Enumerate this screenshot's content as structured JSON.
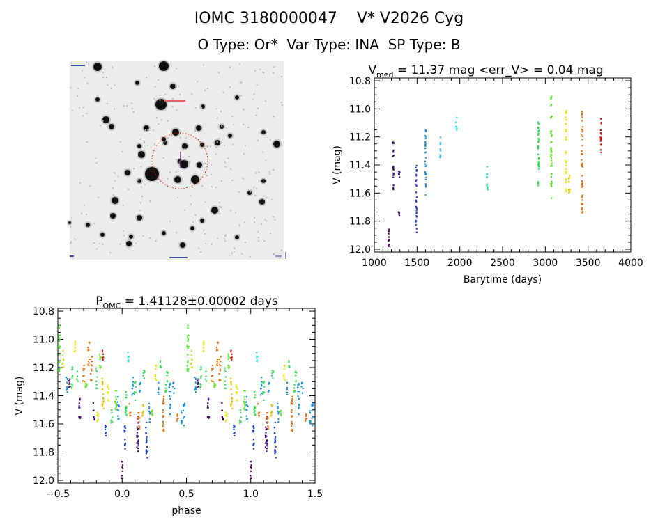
{
  "header": {
    "title": "IOMC 3180000047    V* V2026 Cyg",
    "subtitle": "O Type: Or*  Var Type: INA  SP Type: B"
  },
  "image": {
    "type": "finder-chart",
    "description_labels_illegible": true,
    "aperture_color": "#d01010"
  },
  "chart_data": [
    {
      "type": "scatter",
      "title_main": "V",
      "title_sub": "med",
      "title_rest": " = 11.37 mag <err_V> = 0.04 mag",
      "xlabel": "Barytime (days)",
      "ylabel": "V (mag)",
      "xlim": [
        1000,
        4000
      ],
      "ylim": [
        12.02,
        10.78
      ],
      "y_inverted": true,
      "xticks": [
        1000,
        1500,
        2000,
        2500,
        3000,
        3500,
        4000
      ],
      "yticks": [
        "10.8",
        "11.0",
        "11.2",
        "11.4",
        "11.6",
        "11.8",
        "12.0"
      ],
      "grid": false,
      "series": [
        {
          "x": 1170,
          "vmin": 11.84,
          "vmax": 12.0,
          "color": "#4b0050"
        },
        {
          "x": 1220,
          "vmin": 11.23,
          "vmax": 11.58,
          "color": "#3c0a78"
        },
        {
          "x": 1290,
          "vmin": 11.43,
          "vmax": 11.49,
          "color": "#3c0a78"
        },
        {
          "x": 1290,
          "vmin": 11.72,
          "vmax": 11.77,
          "color": "#3c0a78"
        },
        {
          "x": 1490,
          "vmin": 11.4,
          "vmax": 11.88,
          "color": "#1a3cc8"
        },
        {
          "x": 1600,
          "vmin": 11.15,
          "vmax": 11.62,
          "color": "#1e90d8"
        },
        {
          "x": 1770,
          "vmin": 11.17,
          "vmax": 11.35,
          "color": "#28c8e0"
        },
        {
          "x": 1960,
          "vmin": 11.06,
          "vmax": 11.18,
          "color": "#30e0d0"
        },
        {
          "x": 2320,
          "vmin": 11.41,
          "vmax": 11.59,
          "color": "#20e0a0"
        },
        {
          "x": 2920,
          "vmin": 11.08,
          "vmax": 11.56,
          "color": "#20e040"
        },
        {
          "x": 3070,
          "vmin": 10.9,
          "vmax": 11.66,
          "color": "#60e020"
        },
        {
          "x": 3240,
          "vmin": 11.0,
          "vmax": 11.61,
          "color": "#e8e800"
        },
        {
          "x": 3280,
          "vmin": 11.46,
          "vmax": 11.62,
          "color": "#e8c000"
        },
        {
          "x": 3430,
          "vmin": 11.01,
          "vmax": 11.75,
          "color": "#e07010"
        },
        {
          "x": 3650,
          "vmin": 11.06,
          "vmax": 11.35,
          "color": "#d01010"
        }
      ]
    },
    {
      "type": "scatter",
      "title_main": "P",
      "title_sub": "OMC",
      "title_rest": " = 1.41128±0.00002 days",
      "xlabel": "phase",
      "ylabel": "V (mag)",
      "xlim": [
        -0.5,
        1.5
      ],
      "ylim": [
        12.02,
        10.78
      ],
      "y_inverted": true,
      "xticks": [
        "-0.5",
        "0.0",
        "0.5",
        "1.0",
        "1.5"
      ],
      "yticks": [
        "10.8",
        "11.0",
        "11.2",
        "11.4",
        "11.6",
        "11.8",
        "12.0"
      ],
      "grid": false,
      "phase_repeated_plus_one": true,
      "series": [
        {
          "x": -0.49,
          "vmin": 10.9,
          "vmax": 11.25,
          "color": "#50e030"
        },
        {
          "x": -0.46,
          "vmin": 11.05,
          "vmax": 11.2,
          "color": "#c0e020"
        },
        {
          "x": -0.43,
          "vmin": 11.25,
          "vmax": 11.4,
          "color": "#2090d0"
        },
        {
          "x": -0.41,
          "vmin": 11.28,
          "vmax": 11.38,
          "color": "#3c0a78"
        },
        {
          "x": -0.39,
          "vmin": 11.18,
          "vmax": 11.35,
          "color": "#40d860"
        },
        {
          "x": -0.37,
          "vmin": 11.0,
          "vmax": 11.1,
          "color": "#e8e800"
        },
        {
          "x": -0.35,
          "vmin": 11.2,
          "vmax": 11.3,
          "color": "#40d860"
        },
        {
          "x": -0.33,
          "vmin": 11.42,
          "vmax": 11.57,
          "color": "#3c0a78"
        },
        {
          "x": -0.3,
          "vmin": 11.15,
          "vmax": 11.3,
          "color": "#e07010"
        },
        {
          "x": -0.28,
          "vmin": 11.3,
          "vmax": 11.35,
          "color": "#60e020"
        },
        {
          "x": -0.26,
          "vmin": 11.02,
          "vmax": 11.2,
          "color": "#e07010"
        },
        {
          "x": -0.24,
          "vmin": 11.1,
          "vmax": 11.3,
          "color": "#e07010"
        },
        {
          "x": -0.22,
          "vmin": 11.45,
          "vmax": 11.58,
          "color": "#4b0050"
        },
        {
          "x": -0.2,
          "vmin": 11.2,
          "vmax": 11.35,
          "color": "#40d860"
        },
        {
          "x": -0.19,
          "vmin": 11.5,
          "vmax": 11.6,
          "color": "#e8e800"
        },
        {
          "x": -0.17,
          "vmin": 11.1,
          "vmax": 11.25,
          "color": "#60e020"
        },
        {
          "x": -0.15,
          "vmin": 11.07,
          "vmax": 11.15,
          "color": "#d01010"
        },
        {
          "x": -0.15,
          "vmin": 11.25,
          "vmax": 11.5,
          "color": "#e8c000"
        },
        {
          "x": -0.13,
          "vmin": 11.6,
          "vmax": 11.73,
          "color": "#1a3cc8"
        },
        {
          "x": -0.11,
          "vmin": 11.3,
          "vmax": 11.45,
          "color": "#e8e800"
        },
        {
          "x": -0.08,
          "vmin": 11.5,
          "vmax": 11.62,
          "color": "#40d860"
        },
        {
          "x": -0.05,
          "vmin": 11.3,
          "vmax": 11.5,
          "color": "#60e020"
        },
        {
          "x": -0.03,
          "vmin": 11.4,
          "vmax": 11.6,
          "color": "#1e90d8"
        },
        {
          "x": 0.0,
          "vmin": 11.84,
          "vmax": 11.99,
          "color": "#4b0050"
        },
        {
          "x": 0.02,
          "vmin": 11.58,
          "vmax": 11.78,
          "color": "#1a3cc8"
        },
        {
          "x": 0.03,
          "vmin": 11.35,
          "vmax": 11.55,
          "color": "#20e040"
        },
        {
          "x": 0.05,
          "vmin": 11.07,
          "vmax": 11.17,
          "color": "#30e0d0"
        },
        {
          "x": 0.06,
          "vmin": 11.45,
          "vmax": 11.55,
          "color": "#e07010"
        },
        {
          "x": 0.08,
          "vmin": 11.25,
          "vmax": 11.4,
          "color": "#1e90d8"
        },
        {
          "x": 0.1,
          "vmin": 11.3,
          "vmax": 11.45,
          "color": "#40d860"
        },
        {
          "x": 0.12,
          "vmin": 11.5,
          "vmax": 11.8,
          "color": "#3c0a78"
        },
        {
          "x": 0.13,
          "vmin": 11.5,
          "vmax": 11.65,
          "color": "#e07010"
        },
        {
          "x": 0.14,
          "vmin": 11.3,
          "vmax": 11.4,
          "color": "#1e90d8"
        },
        {
          "x": 0.16,
          "vmin": 11.42,
          "vmax": 11.55,
          "color": "#e8c000"
        },
        {
          "x": 0.17,
          "vmin": 11.22,
          "vmax": 11.28,
          "color": "#40d860"
        },
        {
          "x": 0.19,
          "vmin": 11.58,
          "vmax": 11.85,
          "color": "#1a3cc8"
        },
        {
          "x": 0.21,
          "vmin": 11.45,
          "vmax": 11.6,
          "color": "#1e90d8"
        },
        {
          "x": 0.23,
          "vmin": 11.45,
          "vmax": 11.55,
          "color": "#60e020"
        },
        {
          "x": 0.26,
          "vmin": 11.18,
          "vmax": 11.3,
          "color": "#e8e800"
        },
        {
          "x": 0.28,
          "vmin": 11.3,
          "vmax": 11.4,
          "color": "#1e90d8"
        },
        {
          "x": 0.3,
          "vmin": 11.15,
          "vmax": 11.2,
          "color": "#40d860"
        },
        {
          "x": 0.32,
          "vmin": 11.4,
          "vmax": 11.68,
          "color": "#e07010"
        },
        {
          "x": 0.34,
          "vmin": 11.32,
          "vmax": 11.38,
          "color": "#40d860"
        },
        {
          "x": 0.35,
          "vmin": 11.2,
          "vmax": 11.3,
          "color": "#20e040"
        },
        {
          "x": 0.37,
          "vmin": 11.3,
          "vmax": 11.55,
          "color": "#1e90d8"
        },
        {
          "x": 0.4,
          "vmin": 11.3,
          "vmax": 11.4,
          "color": "#1e90d8"
        },
        {
          "x": 0.43,
          "vmin": 11.52,
          "vmax": 11.62,
          "color": "#e07010"
        },
        {
          "x": 0.46,
          "vmin": 11.5,
          "vmax": 11.6,
          "color": "#1e90d8"
        },
        {
          "x": 0.48,
          "vmin": 11.45,
          "vmax": 11.62,
          "color": "#1e90d8"
        }
      ]
    }
  ]
}
